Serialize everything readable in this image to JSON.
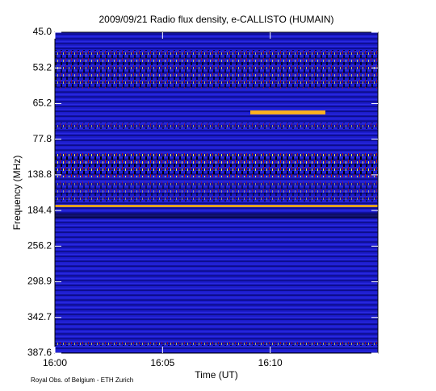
{
  "chart_data": {
    "type": "spectrogram",
    "title": "2009/09/21  Radio flux density, e-CALLISTO (HUMAIN)",
    "x_label": "Time (UT)",
    "y_label": "Frequency (MHz)",
    "xlim": [
      "16:00",
      "16:15"
    ],
    "xticks": [
      "16:00",
      "16:05",
      "16:10"
    ],
    "y_categories": [
      "45.0",
      "53.2",
      "65.2",
      "77.8",
      "138.8",
      "184.4",
      "256.2",
      "298.9",
      "342.7",
      "387.6"
    ],
    "credit": "Royal Obs. of Belgium - ETH Zurich"
  }
}
